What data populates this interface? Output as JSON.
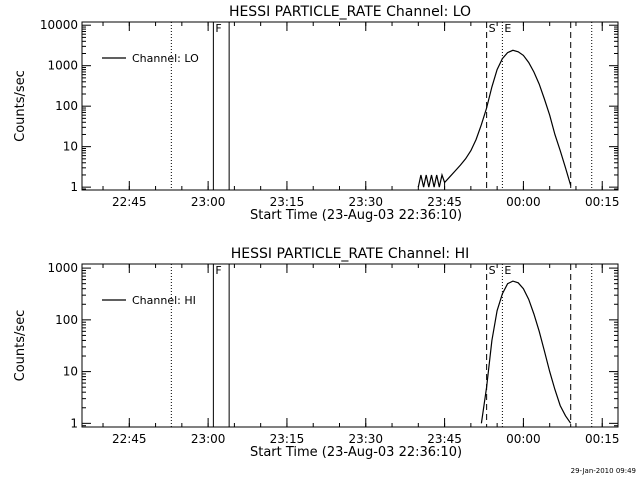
{
  "timestamp": "29-Jan-2010 09:49",
  "chart_data": [
    {
      "type": "line",
      "title": "HESSI PARTICLE_RATE Channel: LO",
      "xlabel": "Start Time (23-Aug-03 22:36:10)",
      "ylabel": "Counts/sec",
      "y_scale": "log",
      "xlim": [
        "22:36",
        "00:18"
      ],
      "ylim": [
        0.85,
        12000
      ],
      "x_ticks": [
        "22:45",
        "23:00",
        "23:15",
        "23:30",
        "23:45",
        "00:00",
        "00:15"
      ],
      "y_ticks": [
        {
          "value": 1,
          "label": "1"
        },
        {
          "value": 10,
          "label": "10"
        },
        {
          "value": 100,
          "label": "100"
        },
        {
          "value": 1000,
          "label": "1000"
        },
        {
          "value": 10000,
          "label": "10000"
        }
      ],
      "legend": {
        "position": "top-left",
        "entries": [
          "Channel: LO"
        ]
      },
      "markers": [
        {
          "label": "",
          "time": "22:53",
          "style": "dotted"
        },
        {
          "label": "F",
          "time": "23:01",
          "style": "solid"
        },
        {
          "label": "",
          "time": "23:04",
          "style": "solid"
        },
        {
          "label": "S",
          "time": "23:53",
          "style": "dashed"
        },
        {
          "label": "E",
          "time": "23:56",
          "style": "dotted"
        },
        {
          "label": "",
          "time": "00:09",
          "style": "dashed"
        },
        {
          "label": "",
          "time": "00:13",
          "style": "dotted"
        }
      ],
      "series": [
        {
          "name": "Channel: LO",
          "x": [
            "23:40",
            "23:40:30",
            "23:41",
            "23:41:30",
            "23:42",
            "23:42:30",
            "23:43",
            "23:43:30",
            "23:44",
            "23:44:30",
            "23:45",
            "23:46",
            "23:47",
            "23:48",
            "23:49",
            "23:50",
            "23:51",
            "23:52",
            "23:53",
            "23:54",
            "23:55",
            "23:56",
            "23:57",
            "23:58",
            "23:59",
            "00:00",
            "00:01",
            "00:02",
            "00:03",
            "00:04",
            "00:05",
            "00:06",
            "00:07",
            "00:08",
            "00:09"
          ],
          "y": [
            1,
            2,
            1,
            2,
            1,
            2,
            1,
            2,
            1,
            2,
            1.3,
            1.8,
            2.5,
            3.5,
            5,
            8,
            15,
            35,
            90,
            300,
            800,
            1500,
            2100,
            2400,
            2200,
            1800,
            1200,
            700,
            350,
            150,
            60,
            20,
            8,
            3,
            1.1
          ]
        }
      ]
    },
    {
      "type": "line",
      "title": "HESSI PARTICLE_RATE Channel: HI",
      "xlabel": "Start Time (23-Aug-03 22:36:10)",
      "ylabel": "Counts/sec",
      "y_scale": "log",
      "xlim": [
        "22:36",
        "00:18"
      ],
      "ylim": [
        0.85,
        1200
      ],
      "x_ticks": [
        "22:45",
        "23:00",
        "23:15",
        "23:30",
        "23:45",
        "00:00",
        "00:15"
      ],
      "y_ticks": [
        {
          "value": 1,
          "label": "1"
        },
        {
          "value": 10,
          "label": "10"
        },
        {
          "value": 100,
          "label": "100"
        },
        {
          "value": 1000,
          "label": "1000"
        }
      ],
      "legend": {
        "position": "top-left",
        "entries": [
          "Channel: HI"
        ]
      },
      "markers": [
        {
          "label": "",
          "time": "22:53",
          "style": "dotted"
        },
        {
          "label": "F",
          "time": "23:01",
          "style": "solid"
        },
        {
          "label": "",
          "time": "23:04",
          "style": "solid"
        },
        {
          "label": "S",
          "time": "23:53",
          "style": "dashed"
        },
        {
          "label": "E",
          "time": "23:56",
          "style": "dotted"
        },
        {
          "label": "",
          "time": "00:09",
          "style": "dashed"
        },
        {
          "label": "",
          "time": "00:13",
          "style": "dotted"
        }
      ],
      "series": [
        {
          "name": "Channel: HI",
          "x": [
            "23:52",
            "23:53",
            "23:54",
            "23:55",
            "23:56",
            "23:57",
            "23:58",
            "23:59",
            "00:00",
            "00:01",
            "00:02",
            "00:03",
            "00:04",
            "00:05",
            "00:06",
            "00:07",
            "00:08",
            "00:09"
          ],
          "y": [
            1,
            5,
            40,
            150,
            320,
            500,
            560,
            520,
            400,
            250,
            130,
            60,
            25,
            10,
            4.5,
            2.2,
            1.4,
            1
          ]
        }
      ]
    }
  ]
}
